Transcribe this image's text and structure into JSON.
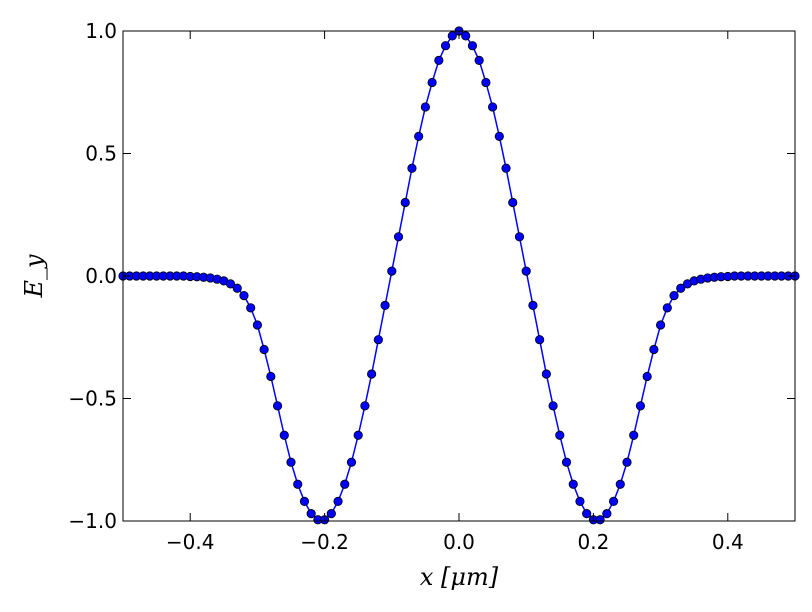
{
  "chart_data": {
    "type": "line",
    "title": "",
    "xlabel": "x [μm]",
    "ylabel": "E_y",
    "xlim": [
      -0.5,
      0.5
    ],
    "ylim": [
      -1.0,
      1.0
    ],
    "xticks": [
      -0.4,
      -0.2,
      0.0,
      0.2,
      0.4
    ],
    "xtick_labels": [
      "−0.4",
      "−0.2",
      "0.0",
      "0.2",
      "0.4"
    ],
    "yticks": [
      -1.0,
      -0.5,
      0.0,
      0.5,
      1.0
    ],
    "ytick_labels": [
      "−1.0",
      "−0.5",
      "0.0",
      "0.5",
      "1.0"
    ],
    "grid": false,
    "colors": {
      "series": "#0000ff",
      "marker_edge": "#000000",
      "axes": "#000000"
    },
    "series": [
      {
        "marker": "circle",
        "x": [
          -0.5,
          -0.49,
          -0.48,
          -0.47,
          -0.46,
          -0.45,
          -0.44,
          -0.43,
          -0.42,
          -0.41,
          -0.4,
          -0.39,
          -0.38,
          -0.37,
          -0.36,
          -0.35,
          -0.34,
          -0.33,
          -0.32,
          -0.31,
          -0.3,
          -0.29,
          -0.28,
          -0.27,
          -0.26,
          -0.25,
          -0.24,
          -0.23,
          -0.22,
          -0.21,
          -0.2,
          -0.19,
          -0.18,
          -0.17,
          -0.16,
          -0.15,
          -0.14,
          -0.13,
          -0.12,
          -0.11,
          -0.1,
          -0.09,
          -0.08,
          -0.07,
          -0.06,
          -0.05,
          -0.04,
          -0.03,
          -0.02,
          -0.01,
          0.0,
          0.01,
          0.02,
          0.03,
          0.04,
          0.05,
          0.06,
          0.07,
          0.08,
          0.09,
          0.1,
          0.11,
          0.12,
          0.13,
          0.14,
          0.15,
          0.16,
          0.17,
          0.18,
          0.19,
          0.2,
          0.21,
          0.22,
          0.23,
          0.24,
          0.25,
          0.26,
          0.27,
          0.28,
          0.29,
          0.3,
          0.31,
          0.32,
          0.33,
          0.34,
          0.35,
          0.36,
          0.37,
          0.38,
          0.39,
          0.4,
          0.41,
          0.42,
          0.43,
          0.44,
          0.45,
          0.46,
          0.47,
          0.48,
          0.49,
          0.5
        ],
        "y": [
          0.0,
          0.0,
          0.0,
          0.0,
          0.0,
          0.0,
          0.0,
          0.0,
          0.0,
          0.0,
          -0.002,
          -0.003,
          -0.005,
          -0.008,
          -0.013,
          -0.02,
          -0.032,
          -0.05,
          -0.08,
          -0.13,
          -0.2,
          -0.3,
          -0.41,
          -0.53,
          -0.65,
          -0.76,
          -0.85,
          -0.92,
          -0.97,
          -0.995,
          -0.995,
          -0.97,
          -0.92,
          -0.85,
          -0.76,
          -0.65,
          -0.53,
          -0.4,
          -0.26,
          -0.12,
          0.02,
          0.16,
          0.3,
          0.44,
          0.57,
          0.69,
          0.79,
          0.88,
          0.94,
          0.98,
          1.0,
          0.98,
          0.94,
          0.88,
          0.79,
          0.69,
          0.57,
          0.44,
          0.3,
          0.16,
          0.02,
          -0.12,
          -0.26,
          -0.4,
          -0.53,
          -0.65,
          -0.76,
          -0.85,
          -0.92,
          -0.97,
          -0.995,
          -0.995,
          -0.97,
          -0.92,
          -0.85,
          -0.76,
          -0.65,
          -0.53,
          -0.41,
          -0.3,
          -0.2,
          -0.13,
          -0.08,
          -0.05,
          -0.032,
          -0.02,
          -0.013,
          -0.008,
          -0.005,
          -0.003,
          -0.002,
          0.0,
          0.0,
          0.0,
          0.0,
          0.0,
          0.0,
          0.0,
          0.0,
          0.0,
          0.0
        ]
      }
    ]
  }
}
